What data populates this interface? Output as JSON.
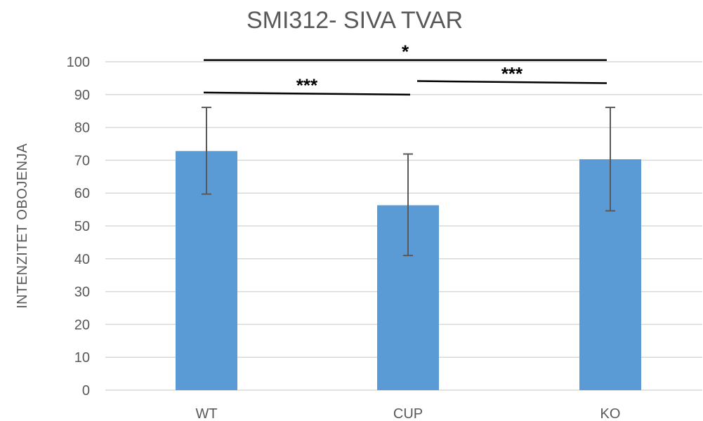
{
  "chart_data": {
    "type": "bar",
    "title": "SMI312- SIVA TVAR",
    "xlabel": "",
    "ylabel": "INTENZITET OBOJENJA",
    "categories": [
      "WT",
      "CUP",
      "KO"
    ],
    "series": [
      {
        "values": [
          72.8,
          56.3,
          70.3
        ],
        "error_low": [
          59.7,
          41.0,
          54.6
        ],
        "error_high": [
          86.1,
          71.9,
          86.1
        ]
      }
    ],
    "ylim": [
      0,
      100
    ],
    "yticks": [
      0,
      10,
      20,
      30,
      40,
      50,
      60,
      70,
      80,
      90,
      100
    ],
    "grid": true,
    "legend": "none",
    "bar_color": "#5b9bd5",
    "significance": [
      {
        "from": "WT",
        "to": "KO",
        "level": 100.5,
        "label": "*"
      },
      {
        "from": "WT",
        "to": "CUP",
        "level": 90.3,
        "label": "***"
      },
      {
        "from": "CUP",
        "to": "KO",
        "level": 93.8,
        "label": "***"
      }
    ]
  }
}
